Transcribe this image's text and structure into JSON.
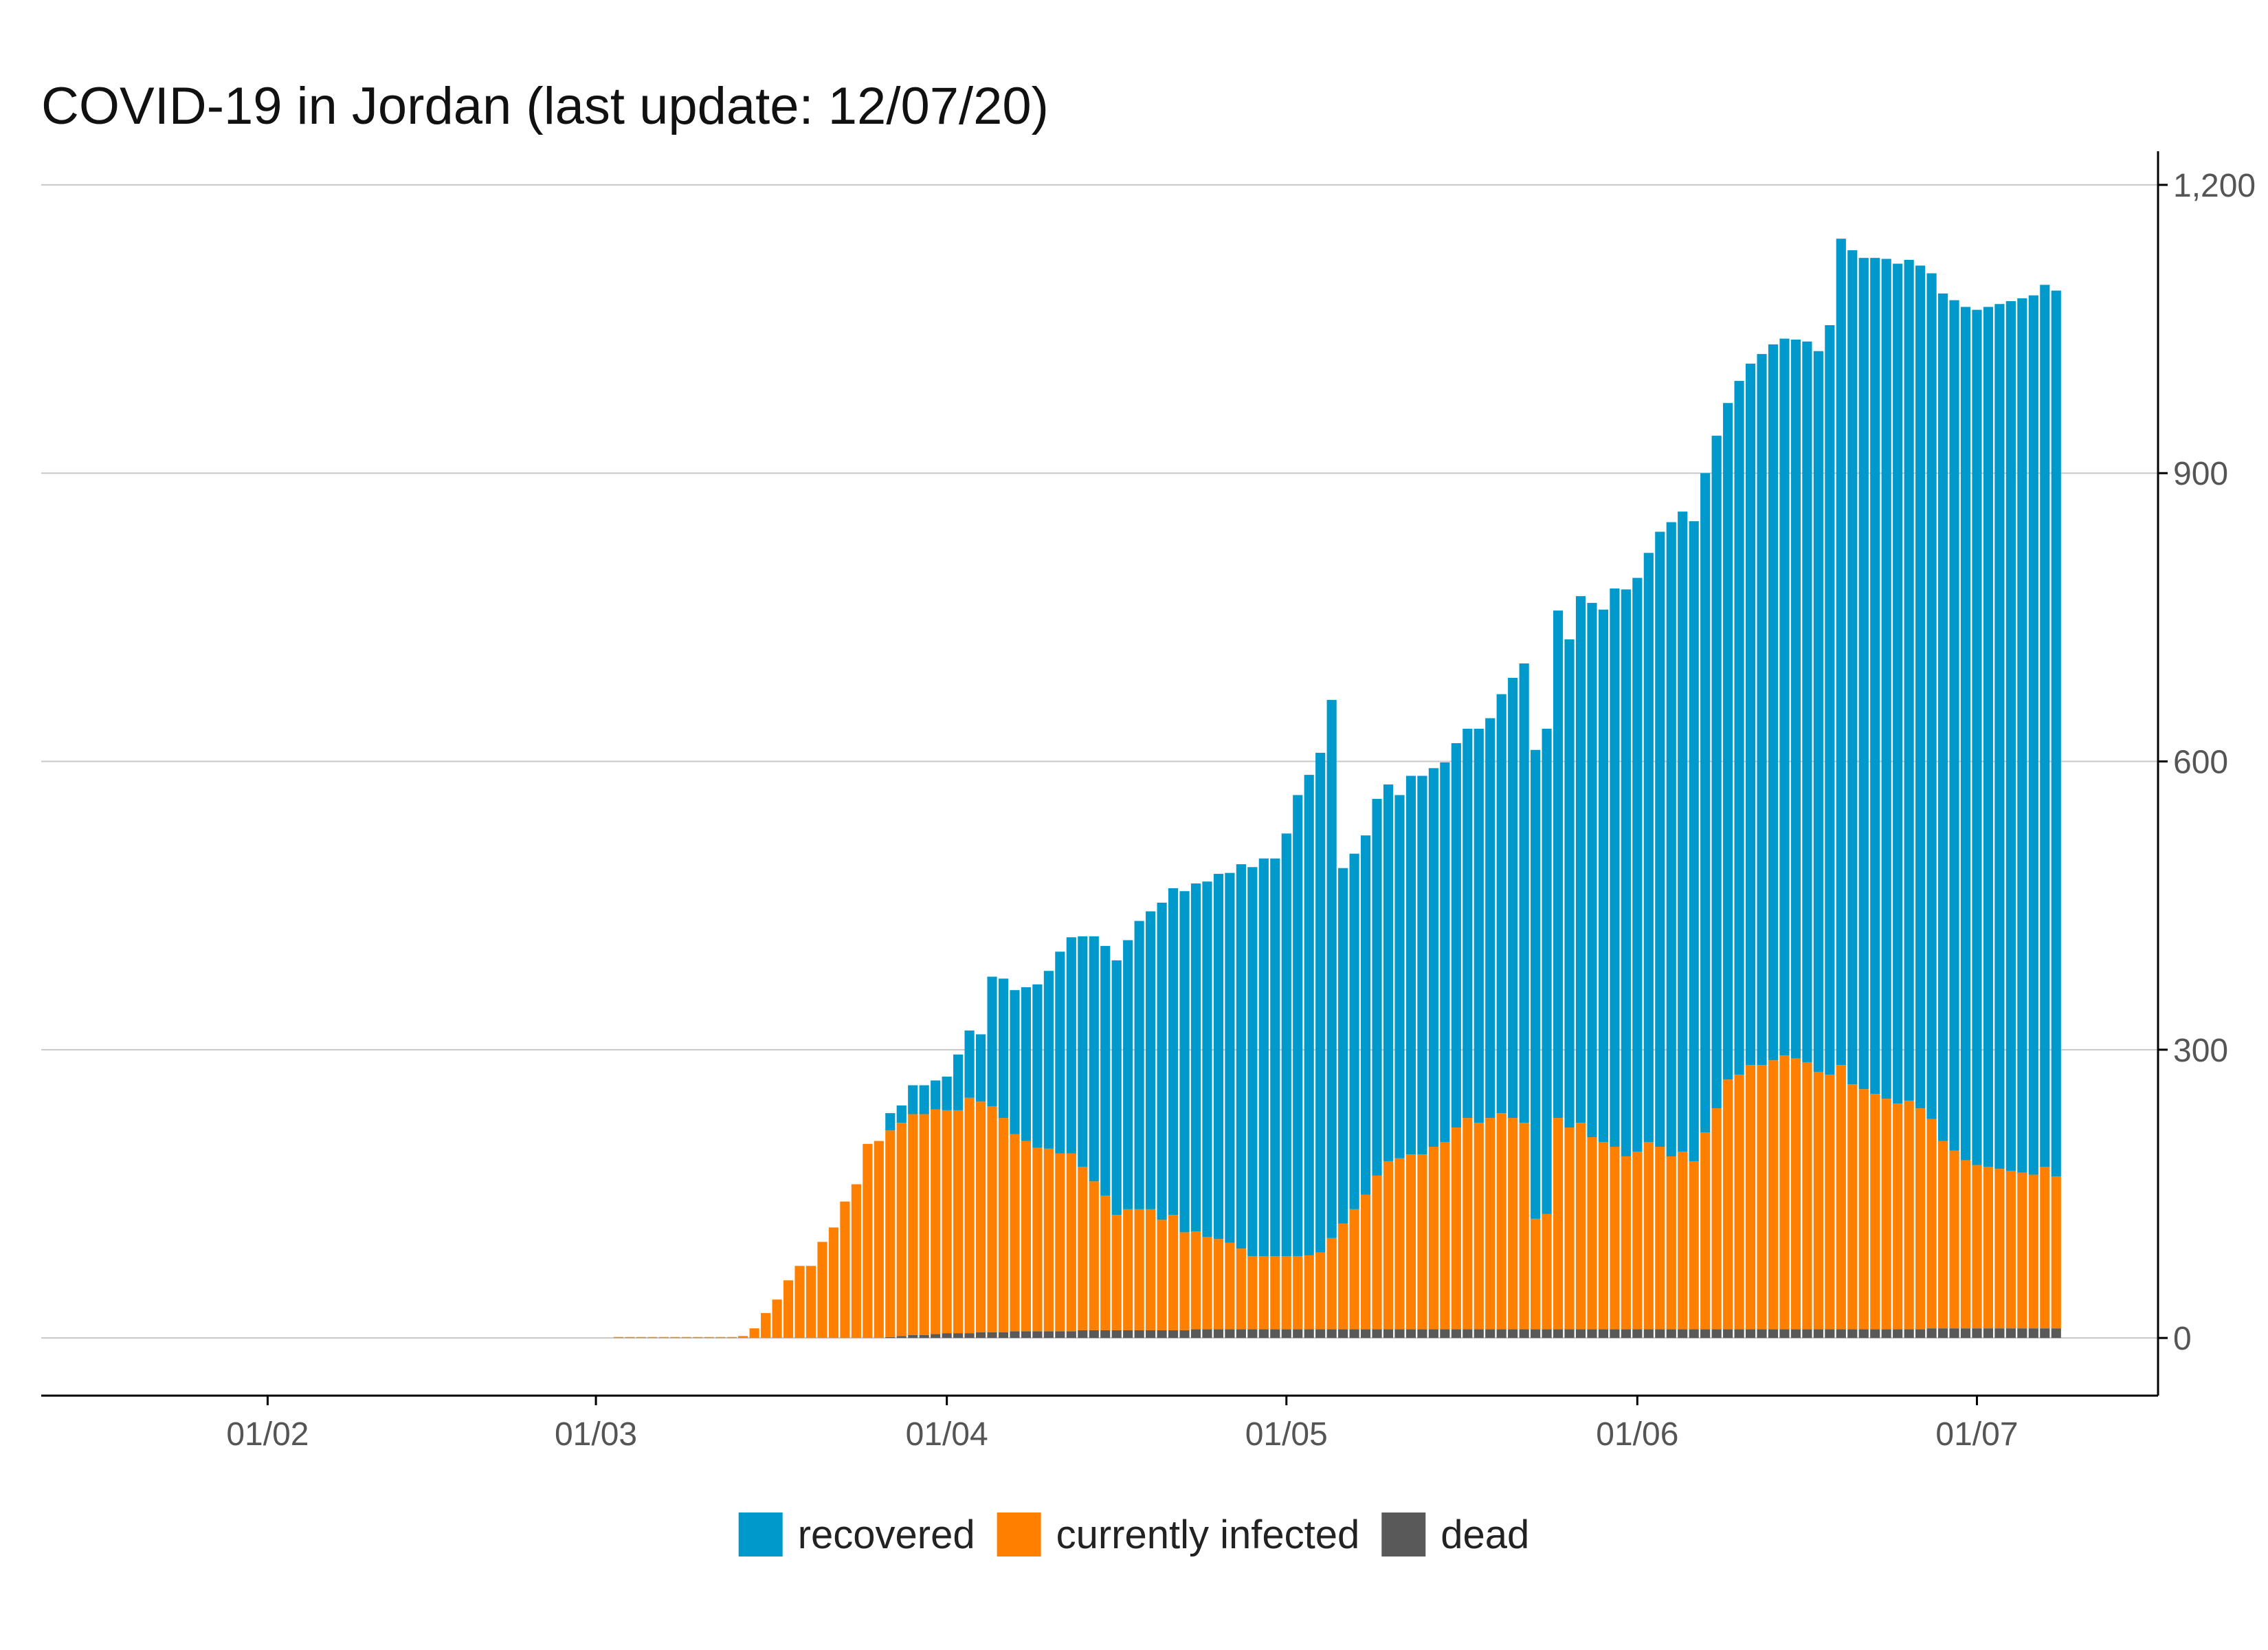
{
  "chart_data": {
    "type": "bar",
    "stacked": true,
    "title": "COVID-19 in Jordan (last update: 12/07/20)",
    "xlabel": "",
    "ylabel": "",
    "ylim": [
      -60,
      1235
    ],
    "yticks": [
      0,
      300,
      600,
      900,
      1200
    ],
    "ytick_labels": [
      "0",
      "300",
      "600",
      "900",
      "1,200"
    ],
    "yaxis_position": "right",
    "grid": "horizontal",
    "legend": "bottom",
    "x_start": "2020-01-12",
    "x_end": "2020-07-17",
    "first_date": "2020-03-03",
    "xticks": [
      {
        "date": "2020-02-01",
        "label": "01/02"
      },
      {
        "date": "2020-03-01",
        "label": "01/03"
      },
      {
        "date": "2020-04-01",
        "label": "01/04"
      },
      {
        "date": "2020-05-01",
        "label": "01/05"
      },
      {
        "date": "2020-06-01",
        "label": "01/06"
      },
      {
        "date": "2020-07-01",
        "label": "01/07"
      }
    ],
    "series": [
      {
        "name": "recovered",
        "color": "#0099CC",
        "values": [
          0,
          0,
          0,
          0,
          0,
          0,
          0,
          0,
          0,
          0,
          0,
          0,
          0,
          0,
          0,
          0,
          0,
          0,
          0,
          0,
          0,
          0,
          0,
          0,
          18,
          18,
          30,
          30,
          30,
          35,
          58,
          70,
          70,
          135,
          145,
          150,
          160,
          170,
          185,
          210,
          225,
          240,
          255,
          260,
          265,
          280,
          300,
          310,
          330,
          340,
          355,
          362,
          370,
          380,
          385,
          400,
          405,
          414,
          414,
          440,
          480,
          500,
          520,
          560,
          370,
          370,
          374,
          392,
          392,
          378,
          394,
          394,
          394,
          395,
          400,
          405,
          410,
          416,
          436,
          458,
          478,
          488,
          505,
          528,
          508,
          548,
          556,
          554,
          581,
          590,
          597,
          613,
          640,
          660,
          666,
          666,
          686,
          700,
          704,
          722,
          730,
          740,
          745,
          746,
          748,
          750,
          750,
          780,
          860,
          868,
          865,
          870,
          874,
          874,
          875,
          877,
          880,
          882,
          885,
          888,
          890,
          895,
          900,
          905,
          910,
          915,
          918,
          922
        ]
      },
      {
        "name": "currently infected",
        "color": "#FF8000",
        "values": [
          1,
          1,
          1,
          1,
          1,
          1,
          1,
          1,
          1,
          1,
          1,
          2,
          10,
          26,
          40,
          60,
          75,
          75,
          100,
          115,
          142,
          160,
          202,
          205,
          215,
          222,
          230,
          230,
          234,
          232,
          232,
          245,
          240,
          235,
          223,
          205,
          198,
          191,
          190,
          185,
          185,
          170,
          155,
          140,
          120,
          126,
          126,
          126,
          115,
          120,
          102,
          102,
          96,
          94,
          90,
          84,
          76,
          76,
          76,
          76,
          76,
          77,
          80,
          95,
          110,
          125,
          140,
          160,
          175,
          178,
          182,
          182,
          190,
          195,
          210,
          220,
          215,
          220,
          225,
          220,
          215,
          115,
          120,
          220,
          210,
          215,
          200,
          195,
          190,
          180,
          185,
          195,
          190,
          180,
          185,
          175,
          205,
          230,
          260,
          265,
          275,
          275,
          280,
          285,
          282,
          278,
          268,
          265,
          275,
          255,
          250,
          245,
          240,
          235,
          238,
          230,
          218,
          195,
          185,
          175,
          170,
          168,
          166,
          164,
          162,
          160,
          168,
          158
        ]
      },
      {
        "name": "dead",
        "color": "#595959",
        "values": [
          0,
          0,
          0,
          0,
          0,
          0,
          0,
          0,
          0,
          0,
          0,
          0,
          0,
          0,
          0,
          0,
          0,
          0,
          0,
          0,
          0,
          0,
          0,
          0,
          1,
          2,
          3,
          3,
          4,
          5,
          5,
          5,
          6,
          6,
          6,
          7,
          7,
          7,
          7,
          7,
          7,
          8,
          8,
          8,
          8,
          8,
          8,
          8,
          8,
          8,
          8,
          9,
          9,
          9,
          9,
          9,
          9,
          9,
          9,
          9,
          9,
          9,
          9,
          9,
          9,
          9,
          9,
          9,
          9,
          9,
          9,
          9,
          9,
          9,
          9,
          9,
          9,
          9,
          9,
          9,
          9,
          9,
          9,
          9,
          9,
          9,
          9,
          9,
          9,
          9,
          9,
          9,
          9,
          9,
          9,
          9,
          9,
          9,
          9,
          9,
          9,
          9,
          9,
          9,
          9,
          9,
          9,
          9,
          9,
          9,
          9,
          9,
          9,
          9,
          9,
          9,
          10,
          10,
          10,
          10,
          10,
          10,
          10,
          10,
          10,
          10,
          10,
          10
        ]
      }
    ]
  }
}
